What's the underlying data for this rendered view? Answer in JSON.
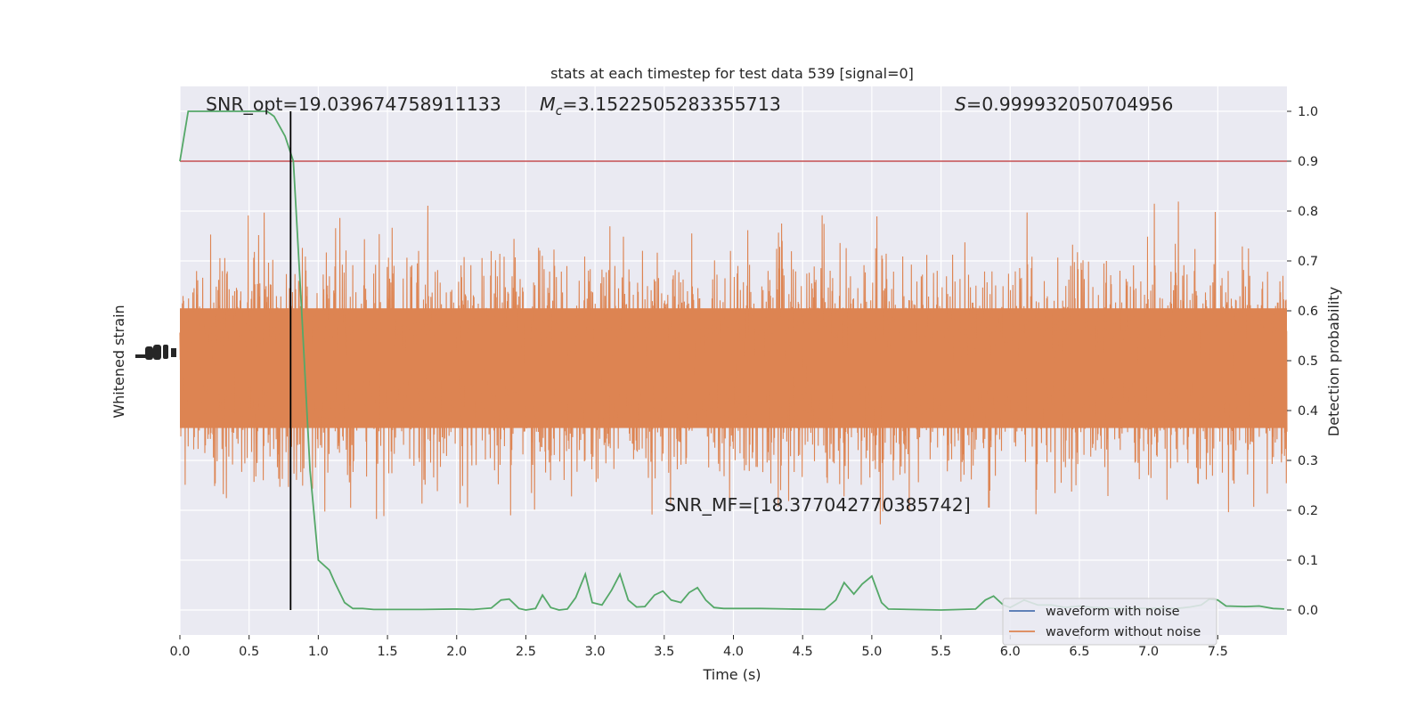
{
  "chart_data": {
    "type": "line",
    "title": "stats at each timestep for test data 539 [signal=0]",
    "xlabel": "Time (s)",
    "ylabel_left": "Whitened strain",
    "ylabel_right": "Detection probability",
    "xlim": [
      0,
      8
    ],
    "ylim_right": [
      -0.05,
      1.05
    ],
    "x_ticks": [
      0.0,
      0.5,
      1.0,
      1.5,
      2.0,
      2.5,
      3.0,
      3.5,
      4.0,
      4.5,
      5.0,
      5.5,
      6.0,
      6.5,
      7.0,
      7.5
    ],
    "x_tick_labels": [
      "0.0",
      "0.5",
      "1.0",
      "1.5",
      "2.0",
      "2.5",
      "3.0",
      "3.5",
      "4.0",
      "4.5",
      "5.0",
      "5.5",
      "6.0",
      "6.5",
      "7.0",
      "7.5"
    ],
    "y_right_ticks": [
      0.0,
      0.1,
      0.2,
      0.3,
      0.4,
      0.5,
      0.6,
      0.7,
      0.8,
      0.9,
      1.0
    ],
    "y_right_tick_labels": [
      "0.0",
      "0.1",
      "0.2",
      "0.3",
      "0.4",
      "0.5",
      "0.6",
      "0.7",
      "0.8",
      "0.9",
      "1.0"
    ],
    "grid": true,
    "legend_placement": "lower right",
    "annotations": {
      "snr_opt": "SNR_opt=19.039674758911133",
      "mc_symbol": "M",
      "mc_sub": "c",
      "mc_value": "=3.1522505283355713",
      "s_symbol": "S",
      "s_value": "=0.999932050704956",
      "snr_mf": "SNR_MF=[18.377042770385742]"
    },
    "threshold": {
      "value": 0.9,
      "color": "#c44e52"
    },
    "marker_time": 0.8,
    "series": [
      {
        "name": "waveform with noise",
        "color": "#4c72b0",
        "kind": "strain",
        "visible": false
      },
      {
        "name": "waveform without noise",
        "color": "#dd8452",
        "kind": "strain",
        "envelope_top": 0.95,
        "envelope_bottom": 0.02
      },
      {
        "color": "#55a868",
        "kind": "probability",
        "x": [
          0.0,
          0.06,
          0.15,
          0.25,
          0.35,
          0.45,
          0.55,
          0.63,
          0.68,
          0.7,
          0.76,
          0.82,
          0.88,
          0.94,
          1.0,
          1.08,
          1.12,
          1.19,
          1.25,
          1.32,
          1.4,
          1.5,
          1.75,
          2.0,
          2.12,
          2.25,
          2.32,
          2.38,
          2.45,
          2.5,
          2.57,
          2.62,
          2.68,
          2.74,
          2.8,
          2.86,
          2.93,
          2.98,
          3.05,
          3.12,
          3.18,
          3.24,
          3.3,
          3.36,
          3.43,
          3.49,
          3.55,
          3.62,
          3.68,
          3.74,
          3.8,
          3.86,
          3.93,
          4.2,
          4.4,
          4.66,
          4.74,
          4.8,
          4.87,
          4.93,
          5.0,
          5.07,
          5.12,
          5.5,
          5.75,
          5.82,
          5.88,
          5.95,
          6.0,
          6.1,
          6.2,
          6.3,
          6.4,
          6.5,
          6.6,
          6.7,
          6.8,
          6.9,
          7.0,
          7.1,
          7.2,
          7.3,
          7.38,
          7.44,
          7.5,
          7.56,
          7.7,
          7.8,
          7.9,
          7.98
        ],
        "y": [
          0.9,
          1.0,
          1.0,
          1.0,
          1.0,
          1.0,
          1.0,
          1.0,
          0.99,
          0.98,
          0.95,
          0.9,
          0.6,
          0.28,
          0.1,
          0.08,
          0.055,
          0.015,
          0.003,
          0.003,
          0.001,
          0.001,
          0.001,
          0.002,
          0.001,
          0.004,
          0.02,
          0.022,
          0.003,
          0.0,
          0.003,
          0.03,
          0.005,
          0.0,
          0.002,
          0.025,
          0.072,
          0.015,
          0.01,
          0.04,
          0.072,
          0.02,
          0.006,
          0.007,
          0.03,
          0.038,
          0.02,
          0.015,
          0.035,
          0.045,
          0.02,
          0.005,
          0.003,
          0.003,
          0.002,
          0.001,
          0.02,
          0.055,
          0.032,
          0.052,
          0.068,
          0.015,
          0.002,
          0.0,
          0.002,
          0.02,
          0.028,
          0.01,
          0.005,
          0.02,
          0.01,
          0.01,
          0.005,
          0.008,
          0.005,
          0.004,
          0.003,
          0.004,
          0.003,
          0.004,
          0.003,
          0.006,
          0.01,
          0.022,
          0.02,
          0.008,
          0.007,
          0.008,
          0.003,
          0.002
        ]
      }
    ]
  }
}
